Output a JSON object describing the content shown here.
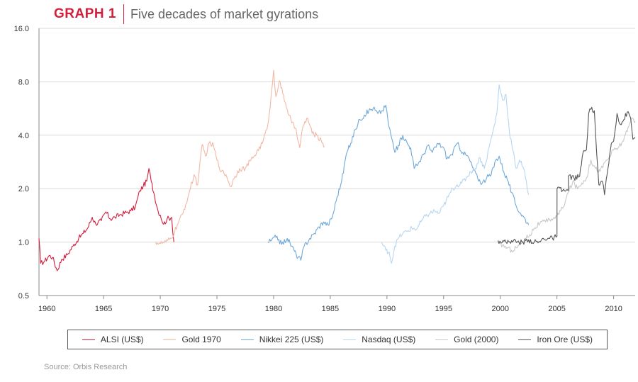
{
  "header": {
    "label": "GRAPH 1",
    "title": "Five decades of market gyrations"
  },
  "source": "Source: Orbis Research",
  "chart_data": {
    "type": "line",
    "title": "Five decades of market gyrations",
    "xlabel": "",
    "ylabel": "",
    "y_scale": "log2",
    "xlim": [
      1959.3,
      2011.9
    ],
    "ylim": [
      0.5,
      16.0
    ],
    "y_ticks": [
      0.5,
      1.0,
      2.0,
      4.0,
      8.0,
      16.0
    ],
    "y_tick_labels": [
      "0.5",
      "1.0",
      "2.0",
      "4.0",
      "8.0",
      "16.0"
    ],
    "x_ticks": [
      1960,
      1965,
      1970,
      1975,
      1980,
      1985,
      1990,
      1995,
      2000,
      2005,
      2010
    ],
    "x_tick_labels": [
      "1960",
      "1965",
      "1970",
      "1975",
      "1980",
      "1985",
      "1990",
      "1995",
      "2000",
      "2005",
      "2010"
    ],
    "grid": "horizontal",
    "legend_position": "bottom",
    "series": [
      {
        "name": "ALSI (US$)",
        "color": "#d21f3c",
        "points": [
          [
            1959.3,
            1.05
          ],
          [
            1959.45,
            0.76
          ],
          [
            1959.8,
            0.78
          ],
          [
            1960.2,
            0.84
          ],
          [
            1960.5,
            0.82
          ],
          [
            1960.9,
            0.69
          ],
          [
            1961.3,
            0.8
          ],
          [
            1961.8,
            0.85
          ],
          [
            1962.3,
            0.95
          ],
          [
            1962.8,
            1.05
          ],
          [
            1963.2,
            1.12
          ],
          [
            1963.6,
            1.2
          ],
          [
            1964.0,
            1.38
          ],
          [
            1964.3,
            1.27
          ],
          [
            1964.8,
            1.32
          ],
          [
            1965.2,
            1.48
          ],
          [
            1965.6,
            1.35
          ],
          [
            1966.0,
            1.38
          ],
          [
            1966.5,
            1.43
          ],
          [
            1967.0,
            1.47
          ],
          [
            1967.4,
            1.5
          ],
          [
            1967.8,
            1.58
          ],
          [
            1968.2,
            1.95
          ],
          [
            1968.5,
            2.07
          ],
          [
            1968.8,
            2.2
          ],
          [
            1969.0,
            2.6
          ],
          [
            1969.2,
            2.2
          ],
          [
            1969.5,
            1.82
          ],
          [
            1969.8,
            1.5
          ],
          [
            1970.0,
            1.42
          ],
          [
            1970.3,
            1.26
          ],
          [
            1970.6,
            1.35
          ],
          [
            1971.0,
            1.38
          ],
          [
            1971.2,
            1.0
          ]
        ]
      },
      {
        "name": "Gold 1970",
        "color": "#f2b8a6",
        "points": [
          [
            1969.6,
            1.0
          ],
          [
            1970.0,
            0.98
          ],
          [
            1970.5,
            1.0
          ],
          [
            1971.0,
            1.05
          ],
          [
            1971.5,
            1.25
          ],
          [
            1972.0,
            1.45
          ],
          [
            1972.5,
            1.85
          ],
          [
            1973.0,
            2.4
          ],
          [
            1973.3,
            2.1
          ],
          [
            1973.7,
            3.55
          ],
          [
            1974.0,
            3.05
          ],
          [
            1974.3,
            3.6
          ],
          [
            1974.7,
            3.5
          ],
          [
            1975.0,
            2.9
          ],
          [
            1975.4,
            2.5
          ],
          [
            1975.8,
            2.4
          ],
          [
            1976.2,
            2.05
          ],
          [
            1976.6,
            2.35
          ],
          [
            1977.0,
            2.6
          ],
          [
            1977.5,
            2.6
          ],
          [
            1978.0,
            2.9
          ],
          [
            1978.5,
            3.2
          ],
          [
            1979.0,
            3.6
          ],
          [
            1979.4,
            4.3
          ],
          [
            1979.7,
            5.8
          ],
          [
            1980.0,
            9.3
          ],
          [
            1980.2,
            6.6
          ],
          [
            1980.5,
            8.1
          ],
          [
            1980.8,
            6.9
          ],
          [
            1981.2,
            5.6
          ],
          [
            1981.6,
            4.7
          ],
          [
            1982.0,
            4.3
          ],
          [
            1982.3,
            3.4
          ],
          [
            1982.6,
            4.5
          ],
          [
            1983.0,
            5.0
          ],
          [
            1983.4,
            4.1
          ],
          [
            1983.8,
            4.0
          ],
          [
            1984.2,
            3.75
          ],
          [
            1984.5,
            3.45
          ]
        ]
      },
      {
        "name": "Nikkei 225 (US$)",
        "color": "#6fa9d9",
        "points": [
          [
            1979.5,
            1.0
          ],
          [
            1979.8,
            1.02
          ],
          [
            1980.3,
            1.08
          ],
          [
            1980.7,
            0.97
          ],
          [
            1981.2,
            1.05
          ],
          [
            1981.6,
            0.95
          ],
          [
            1982.0,
            0.85
          ],
          [
            1982.4,
            0.79
          ],
          [
            1982.7,
            0.95
          ],
          [
            1983.2,
            1.05
          ],
          [
            1983.6,
            1.12
          ],
          [
            1984.0,
            1.22
          ],
          [
            1984.4,
            1.3
          ],
          [
            1984.8,
            1.25
          ],
          [
            1985.2,
            1.4
          ],
          [
            1985.6,
            1.8
          ],
          [
            1986.0,
            2.2
          ],
          [
            1986.4,
            3.1
          ],
          [
            1986.8,
            3.6
          ],
          [
            1987.2,
            4.3
          ],
          [
            1987.6,
            4.9
          ],
          [
            1988.0,
            5.2
          ],
          [
            1988.4,
            5.5
          ],
          [
            1988.8,
            5.7
          ],
          [
            1989.2,
            5.3
          ],
          [
            1989.6,
            5.5
          ],
          [
            1989.9,
            5.9
          ],
          [
            1990.1,
            4.8
          ],
          [
            1990.4,
            3.9
          ],
          [
            1990.7,
            3.2
          ],
          [
            1991.0,
            3.5
          ],
          [
            1991.4,
            4.0
          ],
          [
            1991.8,
            3.6
          ],
          [
            1992.1,
            3.4
          ],
          [
            1992.4,
            2.6
          ],
          [
            1992.8,
            2.8
          ],
          [
            1993.2,
            3.1
          ],
          [
            1993.6,
            3.5
          ],
          [
            1994.0,
            3.2
          ],
          [
            1994.5,
            3.6
          ],
          [
            1995.0,
            3.4
          ],
          [
            1995.3,
            2.95
          ],
          [
            1995.7,
            3.1
          ],
          [
            1996.2,
            3.6
          ],
          [
            1996.7,
            3.2
          ],
          [
            1997.2,
            3.0
          ],
          [
            1997.6,
            2.6
          ],
          [
            1998.0,
            2.3
          ],
          [
            1998.4,
            2.15
          ],
          [
            1998.8,
            2.3
          ],
          [
            1999.2,
            2.4
          ],
          [
            1999.6,
            2.9
          ],
          [
            1999.9,
            3.05
          ],
          [
            2000.3,
            2.5
          ],
          [
            2000.7,
            2.2
          ],
          [
            2001.0,
            1.9
          ],
          [
            2001.4,
            1.6
          ],
          [
            2001.8,
            1.45
          ],
          [
            2002.2,
            1.35
          ],
          [
            2002.5,
            1.25
          ]
        ]
      },
      {
        "name": "Nasdaq (US$)",
        "color": "#b7d6f1",
        "points": [
          [
            1989.5,
            1.0
          ],
          [
            1989.9,
            0.9
          ],
          [
            1990.2,
            0.88
          ],
          [
            1990.4,
            0.76
          ],
          [
            1990.7,
            0.95
          ],
          [
            1991.0,
            1.05
          ],
          [
            1991.4,
            1.12
          ],
          [
            1991.8,
            1.15
          ],
          [
            1992.2,
            1.2
          ],
          [
            1992.6,
            1.18
          ],
          [
            1993.0,
            1.3
          ],
          [
            1993.4,
            1.4
          ],
          [
            1993.8,
            1.45
          ],
          [
            1994.2,
            1.5
          ],
          [
            1994.6,
            1.45
          ],
          [
            1995.0,
            1.6
          ],
          [
            1995.4,
            1.8
          ],
          [
            1995.8,
            2.0
          ],
          [
            1996.2,
            2.1
          ],
          [
            1996.6,
            2.15
          ],
          [
            1997.0,
            2.3
          ],
          [
            1997.4,
            2.5
          ],
          [
            1997.8,
            2.6
          ],
          [
            1998.2,
            3.0
          ],
          [
            1998.6,
            2.6
          ],
          [
            1999.0,
            3.4
          ],
          [
            1999.4,
            4.3
          ],
          [
            1999.7,
            5.3
          ],
          [
            1999.9,
            7.7
          ],
          [
            2000.2,
            6.3
          ],
          [
            2000.5,
            6.8
          ],
          [
            2000.8,
            4.2
          ],
          [
            2001.1,
            3.3
          ],
          [
            2001.4,
            2.6
          ],
          [
            2001.7,
            2.9
          ],
          [
            2002.0,
            2.65
          ],
          [
            2002.3,
            2.2
          ],
          [
            2002.5,
            1.85
          ]
        ]
      },
      {
        "name": "Gold (2000)",
        "color": "#c8c8c8",
        "points": [
          [
            1999.8,
            1.0
          ],
          [
            2000.2,
            0.96
          ],
          [
            2000.6,
            0.93
          ],
          [
            2001.0,
            0.9
          ],
          [
            2001.4,
            0.93
          ],
          [
            2001.8,
            0.98
          ],
          [
            2002.2,
            1.05
          ],
          [
            2002.6,
            1.1
          ],
          [
            2003.0,
            1.2
          ],
          [
            2003.5,
            1.28
          ],
          [
            2004.0,
            1.3
          ],
          [
            2004.5,
            1.35
          ],
          [
            2005.0,
            1.4
          ],
          [
            2005.5,
            1.55
          ],
          [
            2006.0,
            1.9
          ],
          [
            2006.4,
            2.2
          ],
          [
            2006.8,
            2.0
          ],
          [
            2007.2,
            2.15
          ],
          [
            2007.6,
            2.3
          ],
          [
            2008.0,
            2.9
          ],
          [
            2008.4,
            2.6
          ],
          [
            2008.8,
            2.5
          ],
          [
            2009.2,
            2.8
          ],
          [
            2009.6,
            3.0
          ],
          [
            2010.0,
            3.3
          ],
          [
            2010.4,
            3.4
          ],
          [
            2010.8,
            3.7
          ],
          [
            2011.2,
            4.2
          ],
          [
            2011.6,
            5.0
          ],
          [
            2011.9,
            4.8
          ]
        ]
      },
      {
        "name": "Iron Ore (US$)",
        "color": "#555555",
        "points": [
          [
            1999.8,
            1.02
          ],
          [
            2000.5,
            1.0
          ],
          [
            2001.0,
            1.02
          ],
          [
            2001.5,
            1.0
          ],
          [
            2002.0,
            1.0
          ],
          [
            2002.5,
            1.03
          ],
          [
            2003.0,
            1.0
          ],
          [
            2003.5,
            1.0
          ],
          [
            2003.8,
            1.05
          ],
          [
            2004.2,
            1.05
          ],
          [
            2004.6,
            1.05
          ],
          [
            2005.0,
            1.08
          ],
          [
            2005.01,
            2.0
          ],
          [
            2005.5,
            1.95
          ],
          [
            2006.0,
            1.95
          ],
          [
            2006.01,
            2.35
          ],
          [
            2006.5,
            2.3
          ],
          [
            2007.0,
            2.35
          ],
          [
            2007.3,
            3.2
          ],
          [
            2007.6,
            3.3
          ],
          [
            2007.8,
            5.3
          ],
          [
            2008.0,
            5.6
          ],
          [
            2008.3,
            5.5
          ],
          [
            2008.5,
            3.2
          ],
          [
            2008.7,
            2.1
          ],
          [
            2009.0,
            2.2
          ],
          [
            2009.2,
            1.85
          ],
          [
            2009.5,
            2.6
          ],
          [
            2009.8,
            3.6
          ],
          [
            2010.0,
            3.7
          ],
          [
            2010.3,
            5.3
          ],
          [
            2010.6,
            4.6
          ],
          [
            2010.9,
            4.9
          ],
          [
            2011.2,
            5.4
          ],
          [
            2011.5,
            5.0
          ],
          [
            2011.7,
            3.8
          ],
          [
            2011.9,
            3.9
          ]
        ]
      }
    ]
  }
}
